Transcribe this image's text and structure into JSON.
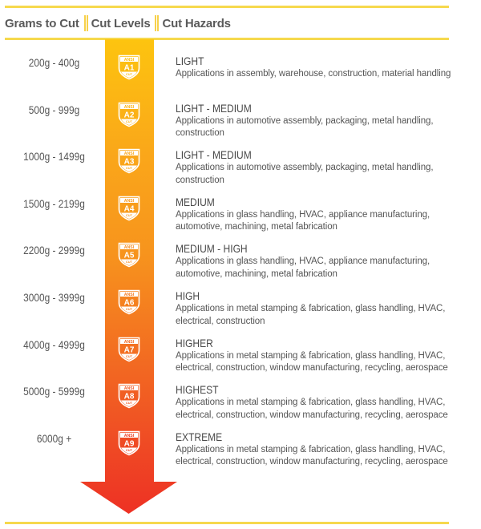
{
  "header": {
    "columns": [
      "Grams to Cut",
      "Cut Levels",
      "Cut Hazards"
    ]
  },
  "arrow": {
    "gradient": [
      "#FDC40F",
      "#FAA61A",
      "#F7941D",
      "#F37021",
      "#EF4B24",
      "#EE3124"
    ]
  },
  "badge": {
    "top_text": "ANSI",
    "bottom_text": "CUT"
  },
  "rows": [
    {
      "grams": "200g - 400g",
      "code": "A1",
      "level": "LIGHT",
      "desc": "Applications in assembly, warehouse, construction, material handling",
      "color": "#FDBE10"
    },
    {
      "grams": "500g - 999g",
      "code": "A2",
      "level": "LIGHT - MEDIUM",
      "desc": "Applications in automotive assembly, packaging, metal handling, construction",
      "color": "#FCB314"
    },
    {
      "grams": "1000g - 1499g",
      "code": "A3",
      "level": "LIGHT - MEDIUM",
      "desc": "Applications in automotive assembly, packaging, metal handling, construction",
      "color": "#FAA61A"
    },
    {
      "grams": "1500g - 2199g",
      "code": "A4",
      "level": "MEDIUM",
      "desc": "Applications in glass handling, HVAC, appliance manufacturing, automotive, machining, metal fabrication",
      "color": "#F8991D"
    },
    {
      "grams": "2200g - 2999g",
      "code": "A5",
      "level": "MEDIUM - HIGH",
      "desc": "Applications in glass handling, HVAC, appliance manufacturing, automotive, machining, metal fabrication",
      "color": "#F68B1F"
    },
    {
      "grams": "3000g - 3999g",
      "code": "A6",
      "level": "HIGH",
      "desc": "Applications in metal stamping & fabrication, glass handling, HVAC, electrical, construction",
      "color": "#F47B20"
    },
    {
      "grams": "4000g - 4999g",
      "code": "A7",
      "level": "HIGHER",
      "desc": "Applications in metal stamping & fabrication, glass handling, HVAC, electrical, construction, window manufacturing, recycling, aerospace",
      "color": "#F26A22"
    },
    {
      "grams": "5000g - 5999g",
      "code": "A8",
      "level": "HIGHEST",
      "desc": "Applications in metal stamping & fabrication, glass handling, HVAC, electrical, construction, window manufacturing, recycling, aerospace",
      "color": "#F05623"
    },
    {
      "grams": "6000g +",
      "code": "A9",
      "level": "EXTREME",
      "desc": "Applications in metal stamping & fabrication, glass handling, HVAC, electrical, construction, window manufacturing, recycling, aerospace",
      "color": "#EE4024"
    }
  ]
}
